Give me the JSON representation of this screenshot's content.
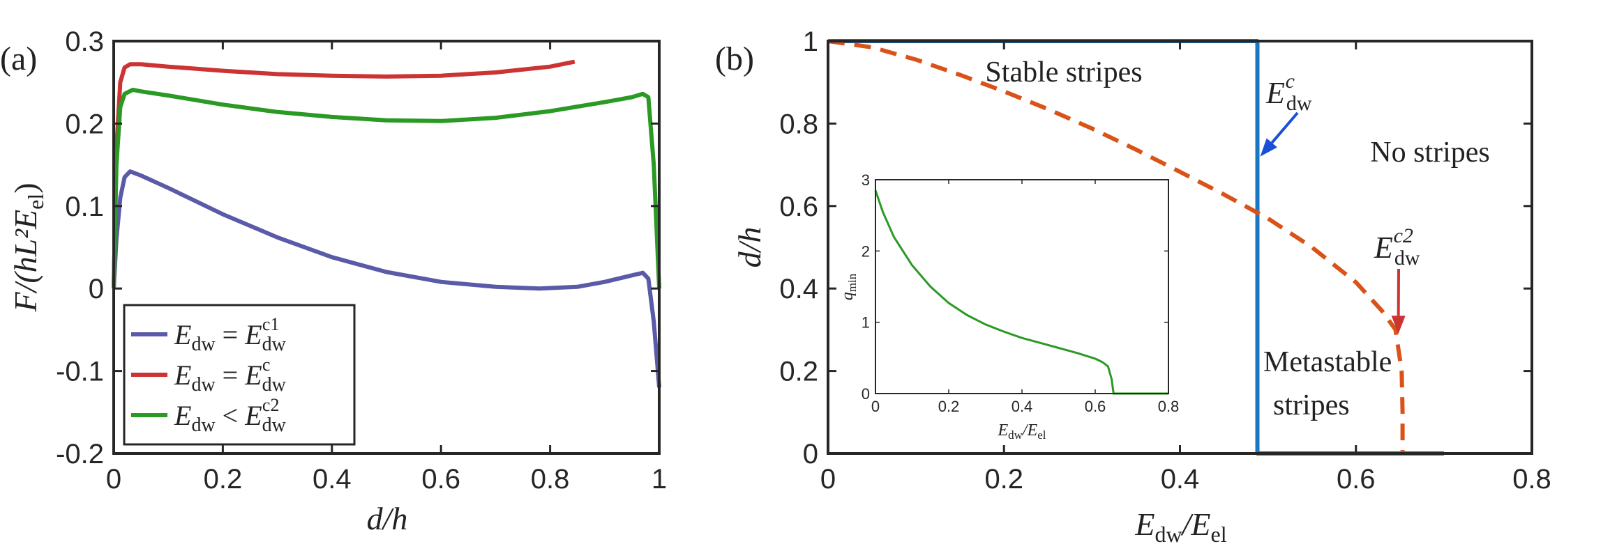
{
  "chart_data": [
    {
      "panel_label": "(a)",
      "type": "line",
      "xlabel": "d/h",
      "ylabel": "F/(hL²E",
      "ylabel_sub": "el",
      "ylabel_end": ")",
      "xlim": [
        0,
        1
      ],
      "ylim": [
        -0.2,
        0.3
      ],
      "xticks": [
        0,
        0.2,
        0.4,
        0.6,
        0.8,
        1
      ],
      "xtick_labels": [
        "0",
        "0.2",
        "0.4",
        "0.6",
        "0.8",
        "1"
      ],
      "yticks": [
        -0.2,
        -0.1,
        0,
        0.1,
        0.2,
        0.3
      ],
      "ytick_labels": [
        "-0.2",
        "-0.1",
        "0",
        "0.1",
        "0.2",
        "0.3"
      ],
      "legend_position": "bottom-left",
      "series": [
        {
          "name": "E_dw = E_dw^c1",
          "legend_lhs": "E",
          "legend_lhs_sub": "dw",
          "legend_op": "=",
          "legend_rhs": "E",
          "legend_rhs_sub": "dw",
          "legend_rhs_sup": "c1",
          "color": "#5a5aa8",
          "points": [
            [
              0,
              0
            ],
            [
              0.005,
              0.06
            ],
            [
              0.012,
              0.11
            ],
            [
              0.02,
              0.135
            ],
            [
              0.03,
              0.142
            ],
            [
              0.05,
              0.137
            ],
            [
              0.1,
              0.122
            ],
            [
              0.15,
              0.106
            ],
            [
              0.2,
              0.09
            ],
            [
              0.3,
              0.062
            ],
            [
              0.4,
              0.038
            ],
            [
              0.5,
              0.02
            ],
            [
              0.6,
              0.008
            ],
            [
              0.7,
              0.002
            ],
            [
              0.78,
              0.0
            ],
            [
              0.85,
              0.002
            ],
            [
              0.9,
              0.008
            ],
            [
              0.95,
              0.016
            ],
            [
              0.97,
              0.019
            ],
            [
              0.98,
              0.012
            ],
            [
              0.99,
              -0.04
            ],
            [
              1.0,
              -0.12
            ]
          ]
        },
        {
          "name": "E_dw = E_dw^c",
          "legend_lhs": "E",
          "legend_lhs_sub": "dw",
          "legend_op": "=",
          "legend_rhs": "E",
          "legend_rhs_sub": "dw",
          "legend_rhs_sup": "c",
          "color": "#cc3333",
          "points": [
            [
              0,
              0
            ],
            [
              0.005,
              0.17
            ],
            [
              0.012,
              0.25
            ],
            [
              0.02,
              0.268
            ],
            [
              0.03,
              0.272
            ],
            [
              0.05,
              0.272
            ],
            [
              0.1,
              0.269
            ],
            [
              0.2,
              0.264
            ],
            [
              0.3,
              0.26
            ],
            [
              0.4,
              0.258
            ],
            [
              0.5,
              0.257
            ],
            [
              0.6,
              0.258
            ],
            [
              0.7,
              0.262
            ],
            [
              0.8,
              0.269
            ],
            [
              0.845,
              0.275
            ]
          ]
        },
        {
          "name": "E_dw < E_dw^c2",
          "legend_lhs": "E",
          "legend_lhs_sub": "dw",
          "legend_op": "<",
          "legend_rhs": "E",
          "legend_rhs_sub": "dw",
          "legend_rhs_sup": "c2",
          "color": "#2a9a24",
          "points": [
            [
              0,
              0
            ],
            [
              0.005,
              0.15
            ],
            [
              0.012,
              0.22
            ],
            [
              0.02,
              0.236
            ],
            [
              0.035,
              0.241
            ],
            [
              0.05,
              0.239
            ],
            [
              0.1,
              0.234
            ],
            [
              0.2,
              0.223
            ],
            [
              0.3,
              0.214
            ],
            [
              0.4,
              0.208
            ],
            [
              0.5,
              0.204
            ],
            [
              0.6,
              0.203
            ],
            [
              0.7,
              0.207
            ],
            [
              0.8,
              0.215
            ],
            [
              0.9,
              0.226
            ],
            [
              0.95,
              0.232
            ],
            [
              0.97,
              0.236
            ],
            [
              0.98,
              0.232
            ],
            [
              0.99,
              0.15
            ],
            [
              1.0,
              0.0
            ]
          ]
        }
      ]
    },
    {
      "panel_label": "(b)",
      "type": "line",
      "xlabel": "E",
      "xlabel_sub": "dw",
      "xlabel_mid": "/E",
      "xlabel_sub2": "el",
      "ylabel": "d/h",
      "xlim": [
        0,
        0.8
      ],
      "ylim": [
        0,
        1
      ],
      "xticks": [
        0,
        0.2,
        0.4,
        0.6,
        0.8
      ],
      "xtick_labels": [
        "0",
        "0.2",
        "0.4",
        "0.6",
        "0.8"
      ],
      "yticks": [
        0,
        0.2,
        0.4,
        0.6,
        0.8,
        1
      ],
      "ytick_labels": [
        "0",
        "0.2",
        "0.4",
        "0.6",
        "0.8",
        "1"
      ],
      "series": [
        {
          "name": "critical boundary (solid)",
          "color": "#1a78c2",
          "style": "solid",
          "points": [
            [
              0,
              1.0
            ],
            [
              0.488,
              1.0
            ],
            [
              0.488,
              0.0
            ],
            [
              0.7,
              0.0
            ]
          ]
        },
        {
          "name": "metastable boundary (dashed)",
          "color": "#d95319",
          "style": "dashed",
          "points": [
            [
              0,
              1.0
            ],
            [
              0.05,
              0.985
            ],
            [
              0.1,
              0.955
            ],
            [
              0.15,
              0.918
            ],
            [
              0.2,
              0.878
            ],
            [
              0.25,
              0.835
            ],
            [
              0.3,
              0.788
            ],
            [
              0.35,
              0.737
            ],
            [
              0.4,
              0.683
            ],
            [
              0.45,
              0.628
            ],
            [
              0.5,
              0.57
            ],
            [
              0.55,
              0.5
            ],
            [
              0.6,
              0.415
            ],
            [
              0.63,
              0.345
            ],
            [
              0.645,
              0.3
            ],
            [
              0.652,
              0.2
            ],
            [
              0.653,
              0.1
            ],
            [
              0.653,
              0.0
            ]
          ]
        }
      ],
      "region_labels": [
        "Stable stripes",
        "No stripes",
        "Metastable",
        "stripes"
      ],
      "annotations": [
        {
          "base": "E",
          "sub": "dw",
          "sup": "c",
          "color": "#1a78c2",
          "point": [
            0.488,
            0.72
          ]
        },
        {
          "base": "E",
          "sub": "dw",
          "sup": "c2",
          "color": "#cc3333",
          "point": [
            0.645,
            0.29
          ]
        }
      ],
      "inset": {
        "type": "line",
        "xlabel": "E",
        "xlabel_sub": "dw",
        "xlabel_mid": "/E",
        "xlabel_sub2": "el",
        "ylabel": "q",
        "ylabel_sub": "min",
        "xlim": [
          0,
          0.8
        ],
        "ylim": [
          0,
          3
        ],
        "xticks": [
          0,
          0.2,
          0.4,
          0.6,
          0.8
        ],
        "xtick_labels": [
          "0",
          "0.2",
          "0.4",
          "0.6",
          "0.8"
        ],
        "yticks": [
          0,
          1,
          2,
          3
        ],
        "ytick_labels": [
          "0",
          "1",
          "2",
          "3"
        ],
        "color": "#2a9a24",
        "points": [
          [
            0,
            2.85
          ],
          [
            0.02,
            2.55
          ],
          [
            0.05,
            2.2
          ],
          [
            0.1,
            1.8
          ],
          [
            0.15,
            1.5
          ],
          [
            0.2,
            1.27
          ],
          [
            0.25,
            1.1
          ],
          [
            0.3,
            0.97
          ],
          [
            0.35,
            0.87
          ],
          [
            0.4,
            0.78
          ],
          [
            0.45,
            0.71
          ],
          [
            0.5,
            0.64
          ],
          [
            0.55,
            0.57
          ],
          [
            0.6,
            0.49
          ],
          [
            0.62,
            0.44
          ],
          [
            0.635,
            0.38
          ],
          [
            0.645,
            0.2
          ],
          [
            0.65,
            0.0
          ],
          [
            0.8,
            0.0
          ]
        ]
      }
    }
  ]
}
